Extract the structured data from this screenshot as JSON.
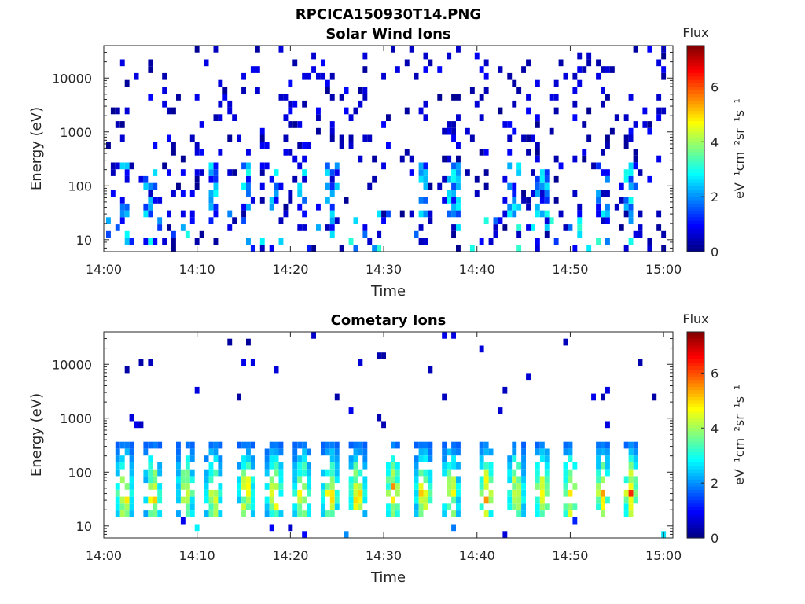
{
  "figure": {
    "title": "RPCICA150930T14.PNG"
  },
  "chart_data": [
    {
      "type": "heatmap",
      "title": "Solar Wind Ions",
      "xlabel": "Time",
      "ylabel": "Energy (eV)",
      "x_range": [
        "14:00",
        "15:01"
      ],
      "x_ticks": [
        "14:00",
        "14:10",
        "14:20",
        "14:30",
        "14:40",
        "14:50",
        "15:00"
      ],
      "y_scale": "log",
      "y_range": [
        6,
        40000
      ],
      "y_ticks": [
        "10",
        "100",
        "1000",
        "10000"
      ],
      "colorbar": {
        "title": "Flux",
        "label": "eV⁻¹cm⁻²sr⁻¹s⁻¹",
        "range": [
          0,
          7.5
        ],
        "ticks": [
          "0",
          "2",
          "4",
          "6"
        ],
        "colormap": "jet"
      },
      "description_of_data": "sparse low-flux (≈0–1) counts scattered across 10–30000 eV; vertical bands of ≈1–3 flux near 30–250 eV at intervals",
      "bursts_minutes": [
        2.2,
        5.0,
        11.8,
        15.3,
        18.3,
        21.2,
        24.5,
        34.3,
        37.5,
        44.0,
        47.0,
        53.5,
        56.5
      ],
      "seed": 1
    },
    {
      "type": "heatmap",
      "title": "Cometary Ions",
      "xlabel": "Time",
      "ylabel": "Energy (eV)",
      "x_range": [
        "14:00",
        "15:01"
      ],
      "x_ticks": [
        "14:00",
        "14:10",
        "14:20",
        "14:30",
        "14:40",
        "14:50",
        "15:00"
      ],
      "y_scale": "log",
      "y_range": [
        6,
        40000
      ],
      "y_ticks": [
        "10",
        "100",
        "1000",
        "10000"
      ],
      "colorbar": {
        "title": "Flux",
        "label": "eV⁻¹cm⁻²sr⁻¹s⁻¹",
        "range": [
          0,
          7.5
        ],
        "ticks": [
          "0",
          "2",
          "4",
          "6"
        ],
        "colormap": "jet"
      },
      "description_of_data": "periodic bursts of high flux (≈3–5.5) between ~15 and ~300 eV, peaking near 30–60 eV; sparse low-flux points above 1000 eV",
      "bursts_minutes": [
        2.2,
        5.3,
        8.8,
        11.8,
        15.3,
        18.3,
        21.3,
        24.3,
        27.2,
        31.0,
        34.3,
        37.2,
        41.0,
        44.2,
        47.0,
        50.0,
        53.5,
        56.5
      ],
      "seed": 7
    }
  ]
}
